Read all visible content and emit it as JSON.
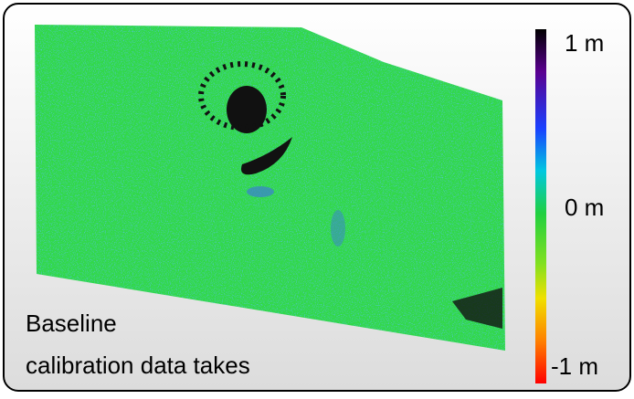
{
  "colorbar": {
    "labels": [
      "1 m",
      "0 m",
      "-1 m"
    ]
  },
  "caption": {
    "lines": [
      "Baseline",
      "calibration data takes"
    ]
  }
}
